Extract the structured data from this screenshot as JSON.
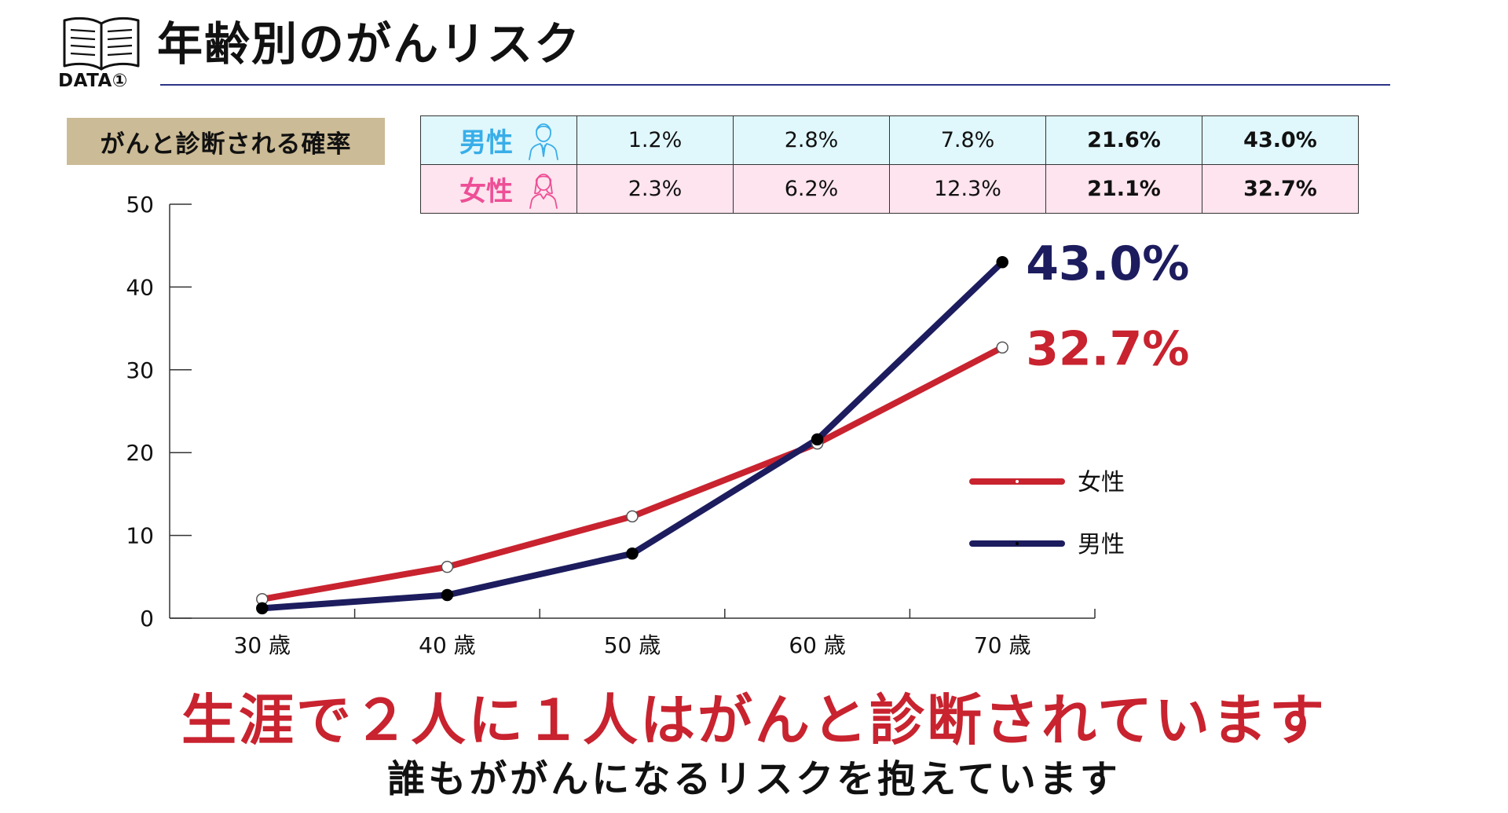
{
  "header": {
    "badge": "DATA①",
    "title": "年齢別のがんリスク",
    "icon": "open-book-icon"
  },
  "section_label": "がんと診断される確率",
  "table": {
    "rows": [
      {
        "label": "男性",
        "icon": "man-avatar-icon",
        "color": "#38aee8",
        "background": "#e0f7fc",
        "values": [
          "1.2%",
          "2.8%",
          "7.8%",
          "21.6%",
          "43.0%"
        ]
      },
      {
        "label": "女性",
        "icon": "woman-avatar-icon",
        "color": "#ee4f96",
        "background": "#fde4ee",
        "values": [
          "2.3%",
          "6.2%",
          "12.3%",
          "21.1%",
          "32.7%"
        ]
      }
    ]
  },
  "chart_data": {
    "type": "line",
    "categories": [
      "30 歳",
      "40 歳",
      "50 歳",
      "60 歳",
      "70 歳"
    ],
    "ylim": [
      0,
      50
    ],
    "yticks": [
      0,
      10,
      20,
      30,
      40,
      50
    ],
    "grid": false,
    "legend_position": "right",
    "series": [
      {
        "name": "女性",
        "color": "#c8232f",
        "marker": "open-circle",
        "values": [
          2.3,
          6.2,
          12.3,
          21.1,
          32.7
        ]
      },
      {
        "name": "男性",
        "color": "#1c1c5e",
        "marker": "filled-circle",
        "values": [
          1.2,
          2.8,
          7.8,
          21.6,
          43.0
        ]
      }
    ],
    "annotations": [
      {
        "text": "43.0%",
        "series": "男性",
        "color": "#1c1c5e"
      },
      {
        "text": "32.7%",
        "series": "女性",
        "color": "#c8232f"
      }
    ]
  },
  "footer": {
    "headline": "生涯で２人に１人はがんと診断されています",
    "subline": "誰もががんになるリスクを抱えています"
  }
}
